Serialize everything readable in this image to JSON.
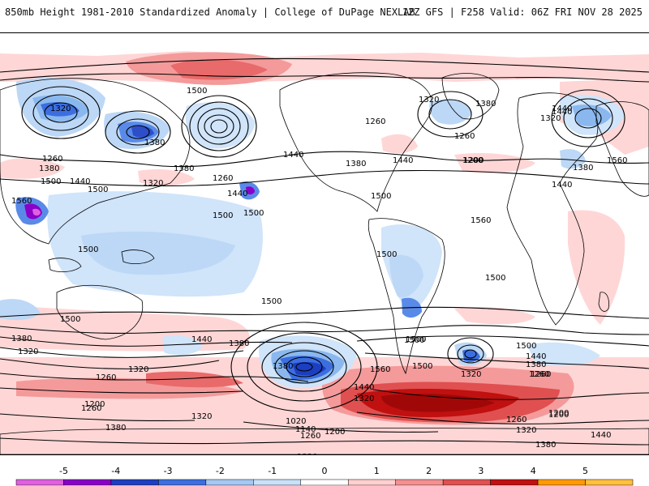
{
  "header": {
    "title": "850mb Height 1981-2010 Standardized Anomaly | College of DuPage NEXLAB",
    "run_info": "12Z GFS | F258 Valid: 06Z FRI NOV 28 2025"
  },
  "map": {
    "contour_labels": [
      "1500",
      "1320",
      "1380",
      "1260",
      "1440",
      "1320",
      "1500",
      "1380",
      "1260",
      "1500",
      "1440",
      "1500",
      "1560",
      "1380",
      "1320",
      "1200",
      "1440",
      "1500",
      "1500",
      "1500",
      "1440",
      "1500",
      "1500",
      "1380",
      "1440",
      "1380",
      "1320",
      "1260",
      "1200",
      "1320",
      "1380",
      "1260",
      "1140",
      "1020",
      "1260",
      "1200",
      "1320",
      "1380",
      "1320",
      "1440",
      "1500",
      "1560",
      "1500",
      "1500",
      "1320",
      "1260",
      "1200",
      "1260",
      "1320",
      "1380",
      "1440",
      "1380",
      "1500",
      "1440",
      "1380",
      "1320",
      "1260",
      "1200",
      "1560",
      "1500",
      "1560",
      "1380",
      "1440",
      "1260",
      "1200",
      "1440",
      "1380",
      "1440",
      "1260",
      "1320",
      "1500"
    ]
  },
  "colorbar": {
    "ticks": [
      "-5",
      "-4",
      "-3",
      "-2",
      "-1",
      "0",
      "1",
      "2",
      "3",
      "4",
      "5"
    ],
    "colors": [
      "#e060e0",
      "#8a00c8",
      "#1c3ec0",
      "#3c6ee0",
      "#a6c8f2",
      "#c8e0f8",
      "#ffffff",
      "#ffd0d0",
      "#f49090",
      "#e05050",
      "#c01010",
      "#ff9a00",
      "#ffc040"
    ]
  }
}
